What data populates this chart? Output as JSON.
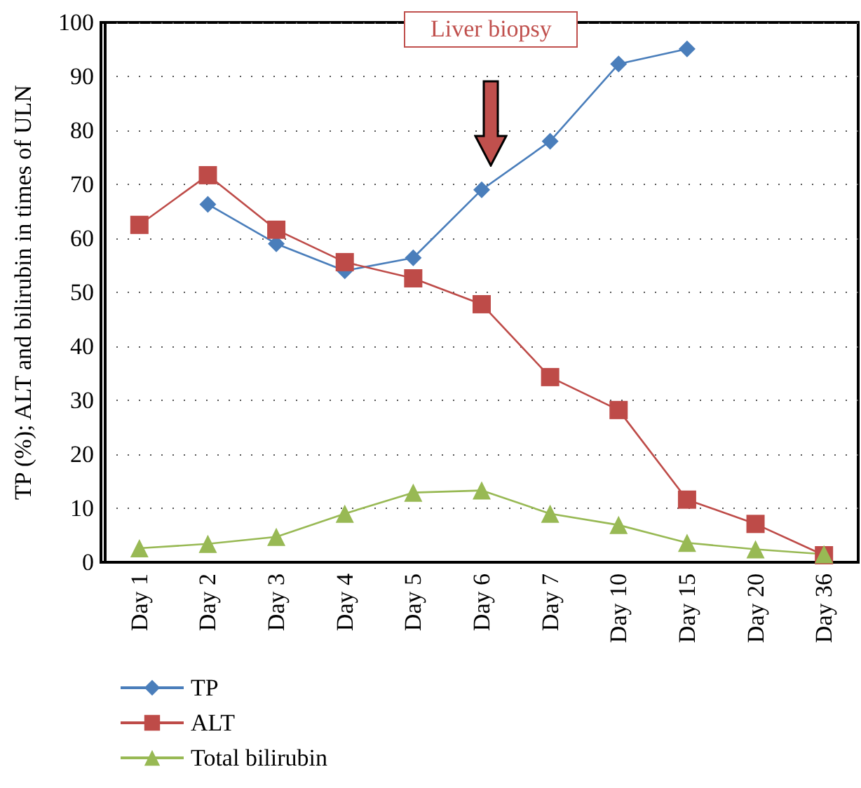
{
  "chart_data": {
    "type": "line",
    "ylabel": "TP (%); ALT and bilirubin in times of ULN",
    "categories": [
      "Day 1",
      "Day 2",
      "Day 3",
      "Day 4",
      "Day 5",
      "Day 6",
      "Day 7",
      "Day 10",
      "Day 15",
      "Day 20",
      "Day 36"
    ],
    "series": [
      {
        "name": "TP",
        "color": "#4a7ebb",
        "marker": "diamond",
        "values": [
          null,
          66.3,
          59,
          54,
          56.4,
          69,
          78,
          92.3,
          95.1,
          null,
          null
        ]
      },
      {
        "name": "ALT",
        "color": "#be4b48",
        "marker": "square",
        "values": [
          62.5,
          71.7,
          61.6,
          55.6,
          52.6,
          47.8,
          34.3,
          28.2,
          11.6,
          7.1,
          1.3
        ]
      },
      {
        "name": "Total bilirubin",
        "color": "#98b954",
        "marker": "triangle",
        "values": [
          2.6,
          3.4,
          4.7,
          9,
          12.9,
          13.3,
          9,
          6.9,
          3.6,
          2.4,
          1.5
        ]
      }
    ],
    "ylim": [
      0,
      100
    ],
    "yticks": [
      0,
      10,
      20,
      30,
      40,
      50,
      60,
      70,
      80,
      90,
      100
    ],
    "grid": "y",
    "legend": "bottom left",
    "line_style": "solid",
    "annotations": [
      "Liver biopsy"
    ]
  }
}
